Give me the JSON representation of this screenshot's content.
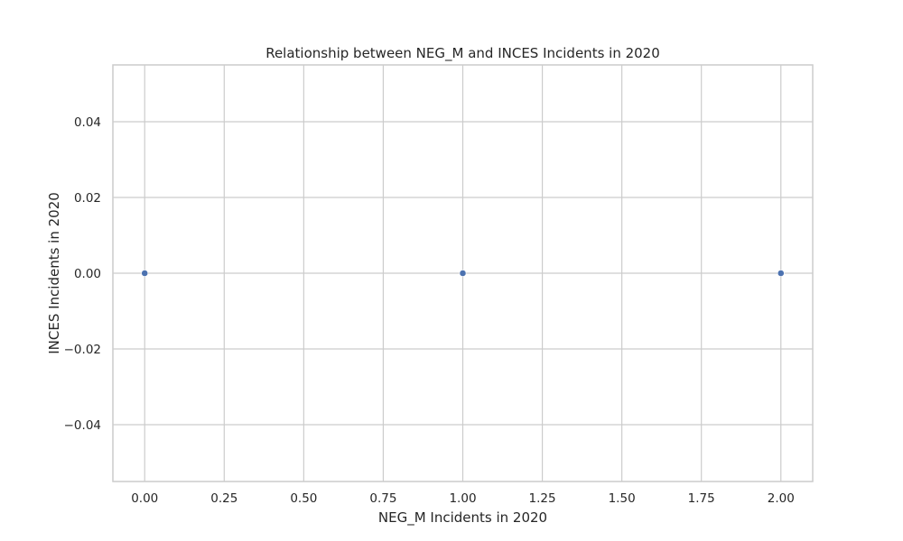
{
  "chart_data": {
    "type": "scatter",
    "title": "Relationship between NEG_M and INCES Incidents in 2020",
    "xlabel": "NEG_M Incidents in 2020",
    "ylabel": "INCES Incidents in 2020",
    "xlim": [
      -0.1,
      2.1
    ],
    "ylim": [
      -0.055,
      0.055
    ],
    "xticks": [
      0.0,
      0.25,
      0.5,
      0.75,
      1.0,
      1.25,
      1.5,
      1.75,
      2.0
    ],
    "xtick_labels": [
      "0.00",
      "0.25",
      "0.50",
      "0.75",
      "1.00",
      "1.25",
      "1.50",
      "1.75",
      "2.00"
    ],
    "yticks": [
      -0.04,
      -0.02,
      0.0,
      0.02,
      0.04
    ],
    "ytick_labels": [
      "−0.04",
      "−0.02",
      "0.00",
      "0.02",
      "0.04"
    ],
    "grid": true,
    "series": [
      {
        "x": [
          0,
          1,
          2
        ],
        "y": [
          0,
          0,
          0
        ],
        "color": "#4c72b0"
      }
    ]
  }
}
